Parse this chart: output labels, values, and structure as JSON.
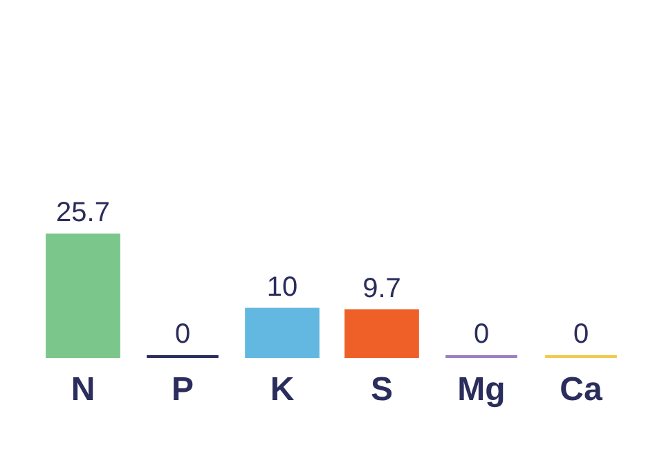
{
  "chart_data": {
    "type": "bar",
    "categories": [
      "N",
      "P",
      "K",
      "S",
      "Mg",
      "Ca"
    ],
    "values": [
      25.7,
      0,
      10,
      9.7,
      0,
      0
    ],
    "colors": [
      "#7bc68a",
      "#2b2d5c",
      "#62b8e0",
      "#ee6028",
      "#9b7fc4",
      "#f2c94c"
    ],
    "data_labels": true,
    "grid": false
  }
}
